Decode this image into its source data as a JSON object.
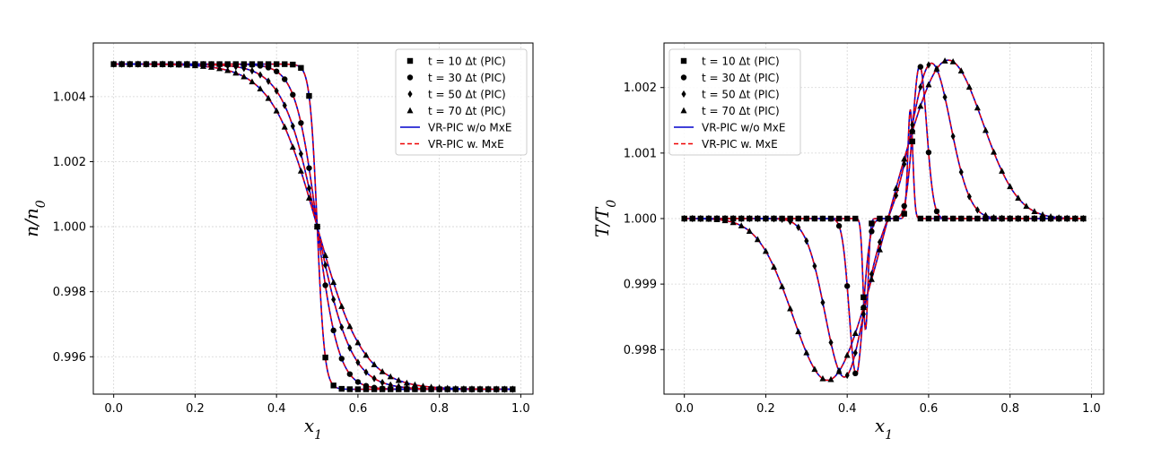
{
  "chart_data": [
    {
      "type": "line",
      "xlabel": "x_1",
      "ylabel": "n/n_0",
      "xlim": [
        -0.05,
        1.03
      ],
      "ylim": [
        0.99485,
        1.00565
      ],
      "xticks": [
        0.0,
        0.2,
        0.4,
        0.6,
        0.8,
        1.0
      ],
      "xtick_labels": [
        "0.0",
        "0.2",
        "0.4",
        "0.6",
        "0.8",
        "1.0"
      ],
      "yticks": [
        0.996,
        0.998,
        1.0,
        1.002,
        1.004
      ],
      "ytick_labels": [
        "0.996",
        "0.998",
        "1.000",
        "1.002",
        "1.004"
      ],
      "grid": true,
      "legend_position": "top-right",
      "legend": [
        {
          "label": "t = 10 Δt (PIC)",
          "marker": "square"
        },
        {
          "label": "t = 30 Δt (PIC)",
          "marker": "circle"
        },
        {
          "label": "t = 50 Δt (PIC)",
          "marker": "diamond"
        },
        {
          "label": "t = 70 Δt (PIC)",
          "marker": "triangle"
        },
        {
          "label": "VR-PIC w/o MxE",
          "line": "solid",
          "color": "#0000cc"
        },
        {
          "label": "VR-PIC w. MxE",
          "line": "dashed",
          "color": "#ee0000"
        }
      ],
      "profile": {
        "kind": "density",
        "center": 0.5,
        "amplitude": 0.005
      },
      "series": [
        {
          "name": "t = 10 Δt",
          "marker": "square",
          "width": 0.018
        },
        {
          "name": "t = 30 Δt",
          "marker": "circle",
          "width": 0.053
        },
        {
          "name": "t = 50 Δt",
          "marker": "diamond",
          "width": 0.083
        },
        {
          "name": "t = 70 Δt",
          "marker": "triangle",
          "width": 0.112
        }
      ]
    },
    {
      "type": "line",
      "xlabel": "x_1",
      "ylabel": "T/T_0",
      "xlim": [
        -0.05,
        1.03
      ],
      "ylim": [
        0.99732,
        1.00268
      ],
      "xticks": [
        0.0,
        0.2,
        0.4,
        0.6,
        0.8,
        1.0
      ],
      "xtick_labels": [
        "0.0",
        "0.2",
        "0.4",
        "0.6",
        "0.8",
        "1.0"
      ],
      "yticks": [
        0.998,
        0.999,
        1.0,
        1.001,
        1.002
      ],
      "ytick_labels": [
        "0.998",
        "0.999",
        "1.000",
        "1.001",
        "1.002"
      ],
      "grid": true,
      "legend_position": "top-left",
      "legend": [
        {
          "label": "t = 10 Δt (PIC)",
          "marker": "square"
        },
        {
          "label": "t = 30 Δt (PIC)",
          "marker": "circle"
        },
        {
          "label": "t = 50 Δt (PIC)",
          "marker": "diamond"
        },
        {
          "label": "t = 70 Δt (PIC)",
          "marker": "triangle"
        },
        {
          "label": "VR-PIC w/o MxE",
          "line": "solid",
          "color": "#0000cc"
        },
        {
          "label": "VR-PIC w. MxE",
          "line": "dashed",
          "color": "#ee0000"
        }
      ],
      "profile": {
        "kind": "temperature",
        "center": 0.5,
        "peak_scale": 0.98
      },
      "series": [
        {
          "name": "t = 10 Δt",
          "marker": "square",
          "shift": 0.055,
          "width": 0.006,
          "amplitude": 0.0017
        },
        {
          "name": "t = 30 Δt",
          "marker": "circle",
          "shift": 0.078,
          "width": 0.017,
          "amplitude": 0.00238
        },
        {
          "name": "t = 50 Δt",
          "marker": "diamond",
          "shift": 0.107,
          "width": 0.047,
          "amplitude": 0.00242
        },
        {
          "name": "t = 70 Δt",
          "marker": "triangle",
          "shift": 0.148,
          "width": 0.085,
          "amplitude": 0.00247
        }
      ]
    }
  ]
}
